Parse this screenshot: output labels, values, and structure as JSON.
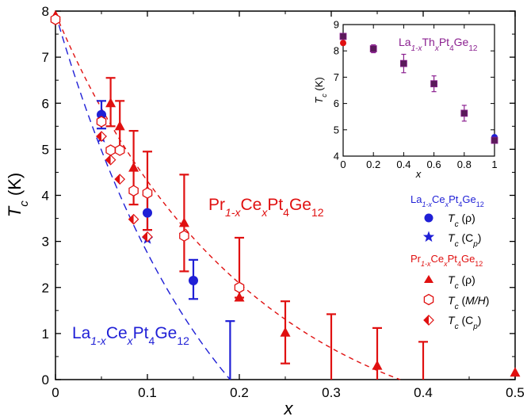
{
  "chart_data": {
    "type": "scatter",
    "xlabel": "x",
    "ylabel": "T_c (K)",
    "xlim": [
      0,
      0.5
    ],
    "ylim": [
      0,
      8
    ],
    "x_ticks": [
      "0",
      "0.1",
      "0.2",
      "0.3",
      "0.4",
      "0.5"
    ],
    "y_ticks": [
      "0",
      "1",
      "2",
      "3",
      "4",
      "5",
      "6",
      "7",
      "8"
    ],
    "annotations": {
      "la_label": {
        "pre": "La",
        "sub1": "1-x",
        "mid": "Ce",
        "sub2": "x",
        "mid2": "Pt",
        "sub3": "4",
        "mid3": "Ge",
        "sub4": "12",
        "color": "#1f1fd6"
      },
      "pr_label": {
        "pre": "Pr",
        "sub1": "1-x",
        "mid": "Ce",
        "sub2": "x",
        "mid2": "Pt",
        "sub3": "4",
        "mid3": "Ge",
        "sub4": "12",
        "color": "#e01010"
      }
    },
    "legend": {
      "position": "right",
      "la_title": {
        "pre": "La",
        "sub1": "1-x",
        "mid": "Ce",
        "sub2": "x",
        "mid2": "Pt",
        "sub3": "4",
        "mid3": "Ge",
        "sub4": "12"
      },
      "pr_title": {
        "pre": "Pr",
        "sub1": "1-x",
        "mid": "Ce",
        "sub2": "x",
        "mid2": "Pt",
        "sub3": "4",
        "mid3": "Ge",
        "sub4": "12"
      },
      "entries_la": [
        {
          "marker": "circle",
          "label": "T",
          "sub": "c",
          "paren": "(ρ)"
        },
        {
          "marker": "star",
          "label": "T",
          "sub": "c",
          "paren": "(C",
          "paren_sub": "p",
          "paren_end": ")"
        }
      ],
      "entries_pr": [
        {
          "marker": "triangle",
          "label": "T",
          "sub": "c",
          "paren": "(ρ)"
        },
        {
          "marker": "hexagon",
          "label": "T",
          "sub": "c",
          "paren": "(M/H)"
        },
        {
          "marker": "half-diamond",
          "label": "T",
          "sub": "c",
          "paren": "(C",
          "paren_sub": "p",
          "paren_end": ")"
        }
      ]
    },
    "colors": {
      "la": "#1f1fd6",
      "pr": "#e01010",
      "th": "#5a1a5a",
      "th_label": "#8b2090"
    },
    "series": [
      {
        "name": "La1-xCexPt4Ge12 Tc(ρ)",
        "marker": "circle",
        "color": "#1f1fd6",
        "points": [
          {
            "x": 0.05,
            "y": 5.75,
            "err_lo": 5.45,
            "err_hi": 6.05
          },
          {
            "x": 0.1,
            "y": 3.62,
            "err_lo": 3.25,
            "err_hi": 4.0
          },
          {
            "x": 0.15,
            "y": 2.15,
            "err_lo": 1.75,
            "err_hi": 2.6
          },
          {
            "x": 0.19,
            "y": 0.0,
            "err_lo": 0.0,
            "err_hi": 1.27
          }
        ]
      },
      {
        "name": "La1-xCexPt4Ge12 Tc(Cp)",
        "marker": "star",
        "color": "#1f1fd6",
        "points": [
          {
            "x": 0.05,
            "y": 5.25
          },
          {
            "x": 0.1,
            "y": 3.05
          }
        ]
      },
      {
        "name": "Pr1-xCexPt4Ge12 Tc(ρ)",
        "marker": "triangle",
        "color": "#e01010",
        "points": [
          {
            "x": 0.0,
            "y": 7.9,
            "err_hi": 7.9
          },
          {
            "x": 0.06,
            "y": 6.0,
            "err_lo": 5.5,
            "err_hi": 6.55
          },
          {
            "x": 0.07,
            "y": 5.5,
            "err_lo": 4.95,
            "err_hi": 6.05
          },
          {
            "x": 0.085,
            "y": 4.6,
            "err_lo": 3.8,
            "err_hi": 5.4
          },
          {
            "x": 0.1,
            "y": 4.1,
            "err_lo": 3.25,
            "err_hi": 4.95
          },
          {
            "x": 0.14,
            "y": 3.4,
            "err_lo": 2.35,
            "err_hi": 4.45
          },
          {
            "x": 0.2,
            "y": 1.78,
            "err_lo": 1.78,
            "err_hi": 3.08
          },
          {
            "x": 0.25,
            "y": 1.02,
            "err_lo": 0.35,
            "err_hi": 1.7
          },
          {
            "x": 0.3,
            "y": 0.0,
            "err_lo": 0.0,
            "err_hi": 1.42
          },
          {
            "x": 0.35,
            "y": 0.3,
            "err_lo": 0.0,
            "err_hi": 1.12
          },
          {
            "x": 0.4,
            "y": 0.0,
            "err_lo": 0.0,
            "err_hi": 0.82
          },
          {
            "x": 0.5,
            "y": 0.15
          }
        ]
      },
      {
        "name": "Pr1-xCexPt4Ge12 Tc(M/H)",
        "marker": "hexagon",
        "color": "#e01010",
        "points": [
          {
            "x": 0.0,
            "y": 7.82
          },
          {
            "x": 0.05,
            "y": 5.6
          },
          {
            "x": 0.06,
            "y": 4.98
          },
          {
            "x": 0.07,
            "y": 4.98
          },
          {
            "x": 0.085,
            "y": 4.1
          },
          {
            "x": 0.1,
            "y": 4.05
          },
          {
            "x": 0.14,
            "y": 3.12
          },
          {
            "x": 0.2,
            "y": 2.0
          }
        ]
      },
      {
        "name": "Pr1-xCexPt4Ge12 Tc(Cp)",
        "marker": "half-diamond",
        "color": "#e01010",
        "points": [
          {
            "x": 0.05,
            "y": 5.28
          },
          {
            "x": 0.06,
            "y": 4.77
          },
          {
            "x": 0.07,
            "y": 4.35
          },
          {
            "x": 0.085,
            "y": 3.48
          },
          {
            "x": 0.1,
            "y": 3.1
          }
        ]
      }
    ],
    "fits": [
      {
        "name": "La fit",
        "color": "#1f1fd6",
        "dash": "9,6",
        "x0": 0.0,
        "y0": 7.95,
        "x1": 0.19,
        "y1": 0.0,
        "curve": 0.55
      },
      {
        "name": "Pr fit",
        "color": "#e01010",
        "dash": "6,5",
        "x0": 0.0,
        "y0": 7.95,
        "x1": 0.375,
        "y1": 0.0,
        "curve": 0.9
      }
    ],
    "inset": {
      "xlabel": "x",
      "ylabel": "T_c (K)",
      "title": {
        "pre": "La",
        "sub1": "1-x",
        "mid": "Th",
        "sub2": "x",
        "mid2": "Pt",
        "sub3": "4",
        "mid3": "Ge",
        "sub4": "12"
      },
      "xlim": [
        0,
        1
      ],
      "ylim": [
        4,
        9
      ],
      "x_ticks": [
        "0",
        "0.2",
        "0.4",
        "0.6",
        "0.8",
        "1"
      ],
      "y_ticks": [
        "4",
        "5",
        "6",
        "7",
        "8",
        "9"
      ],
      "squares": [
        {
          "x": 0.0,
          "y": 8.55
        },
        {
          "x": 0.2,
          "y": 8.08,
          "err": 0.15
        },
        {
          "x": 0.4,
          "y": 7.52,
          "err": 0.35
        },
        {
          "x": 0.6,
          "y": 6.75,
          "err": 0.3
        },
        {
          "x": 0.8,
          "y": 5.63,
          "err": 0.3
        },
        {
          "x": 1.0,
          "y": 4.6
        }
      ],
      "red_point": {
        "x": 0.0,
        "y": 8.3
      },
      "blue_point": {
        "x": 1.0,
        "y": 4.72
      }
    }
  }
}
